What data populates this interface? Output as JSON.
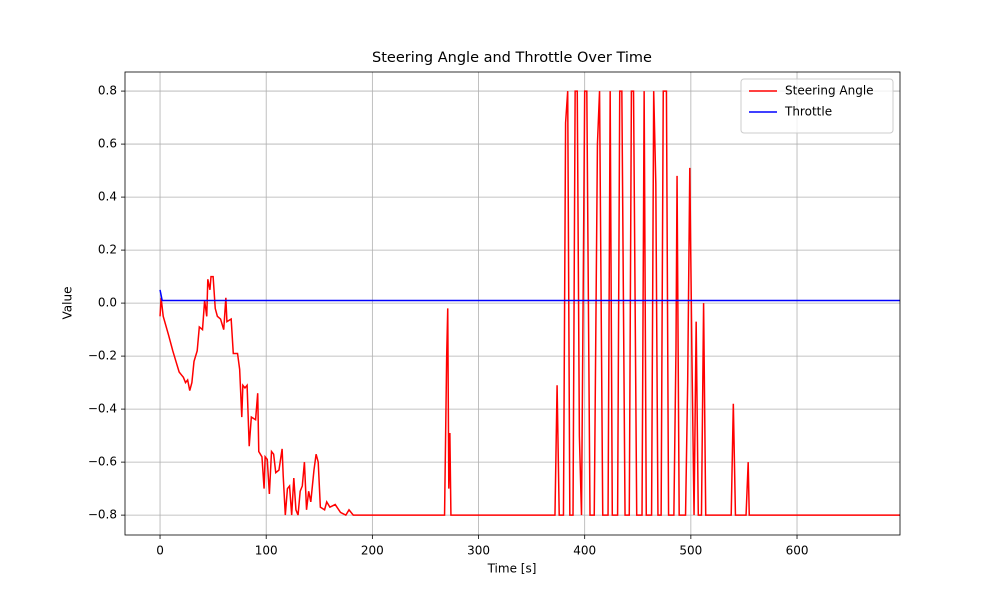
{
  "chart_data": {
    "type": "line",
    "title": "Steering Angle and Throttle Over Time",
    "xlabel": "Time [s]",
    "ylabel": "Value",
    "xlim": [
      -33,
      697
    ],
    "ylim": [
      -0.875,
      0.872
    ],
    "xticks": [
      0,
      100,
      200,
      300,
      400,
      500,
      600
    ],
    "yticks": [
      {
        "value": -0.8,
        "label": "−0.8"
      },
      {
        "value": -0.6,
        "label": "−0.6"
      },
      {
        "value": -0.4,
        "label": "−0.4"
      },
      {
        "value": -0.2,
        "label": "−0.2"
      },
      {
        "value": 0,
        "label": "0.0"
      },
      0.2,
      0.4,
      0.6,
      0.8
    ],
    "grid": true,
    "legend": "upper right",
    "series": [
      {
        "name": "Steering Angle",
        "color": "#ff0000",
        "x": [
          0,
          1,
          3,
          8,
          12,
          15,
          18,
          20,
          22,
          24,
          26,
          28,
          30,
          32,
          35,
          37,
          40,
          42,
          44,
          45,
          47,
          48,
          50,
          52,
          54,
          57,
          60,
          62,
          63,
          67,
          69,
          73,
          75,
          77,
          78,
          80,
          82,
          84,
          86,
          90,
          92,
          93,
          96,
          98,
          99,
          101,
          103,
          105,
          107,
          109,
          112,
          115,
          116,
          118,
          120,
          122,
          124,
          126,
          128,
          130,
          132,
          134,
          136,
          138,
          140,
          142,
          145,
          147,
          149,
          151,
          155,
          157,
          160,
          165,
          170,
          175,
          178,
          182,
          268,
          270,
          271,
          272,
          273,
          274,
          372,
          374,
          376,
          380,
          382,
          384,
          386,
          389,
          391,
          393,
          395,
          397,
          400,
          402,
          405,
          409,
          412,
          414,
          417,
          422,
          424,
          426,
          431,
          433,
          435,
          438,
          442,
          444,
          446,
          449,
          454,
          456,
          458,
          463,
          465,
          467,
          469,
          472,
          474,
          477,
          479,
          484,
          486,
          487,
          489,
          495,
          497,
          499,
          501,
          503,
          505,
          507,
          510,
          512,
          514,
          538,
          540,
          542,
          552,
          554,
          555,
          697
        ],
        "values": [
          -0.05,
          0.02,
          -0.05,
          -0.12,
          -0.18,
          -0.22,
          -0.26,
          -0.27,
          -0.28,
          -0.3,
          -0.29,
          -0.33,
          -0.3,
          -0.22,
          -0.18,
          -0.09,
          -0.1,
          0.01,
          -0.05,
          0.09,
          0.05,
          0.1,
          0.1,
          -0.02,
          -0.05,
          -0.06,
          -0.1,
          0.02,
          -0.07,
          -0.06,
          -0.19,
          -0.19,
          -0.25,
          -0.43,
          -0.31,
          -0.32,
          -0.31,
          -0.54,
          -0.43,
          -0.44,
          -0.34,
          -0.56,
          -0.58,
          -0.7,
          -0.58,
          -0.59,
          -0.72,
          -0.56,
          -0.57,
          -0.64,
          -0.63,
          -0.55,
          -0.65,
          -0.8,
          -0.7,
          -0.69,
          -0.8,
          -0.66,
          -0.78,
          -0.8,
          -0.71,
          -0.69,
          -0.6,
          -0.78,
          -0.71,
          -0.75,
          -0.63,
          -0.57,
          -0.6,
          -0.77,
          -0.78,
          -0.75,
          -0.77,
          -0.76,
          -0.79,
          -0.8,
          -0.78,
          -0.8,
          -0.8,
          -0.2,
          -0.02,
          -0.7,
          -0.49,
          -0.8,
          -0.8,
          -0.31,
          -0.8,
          -0.8,
          0.68,
          0.8,
          -0.8,
          -0.8,
          0.8,
          0.8,
          -0.5,
          -0.8,
          0.8,
          0.8,
          -0.8,
          -0.8,
          0.6,
          0.8,
          -0.8,
          -0.8,
          0.8,
          -0.8,
          -0.8,
          0.8,
          0.8,
          -0.8,
          -0.8,
          0.8,
          0.8,
          -0.8,
          -0.8,
          0.8,
          -0.8,
          -0.8,
          0.8,
          0.45,
          -0.8,
          -0.8,
          0.8,
          0.8,
          -0.8,
          -0.8,
          -0.17,
          0.48,
          -0.8,
          -0.8,
          -0.3,
          0.51,
          -0.2,
          -0.8,
          -0.07,
          -0.8,
          -0.8,
          0,
          -0.8,
          -0.8,
          -0.38,
          -0.8,
          -0.8,
          -0.6,
          -0.8,
          -0.8
        ]
      },
      {
        "name": "Throttle",
        "color": "#0000ff",
        "x": [
          0,
          2,
          697
        ],
        "values": [
          0.05,
          0.01,
          0.01
        ]
      }
    ]
  }
}
